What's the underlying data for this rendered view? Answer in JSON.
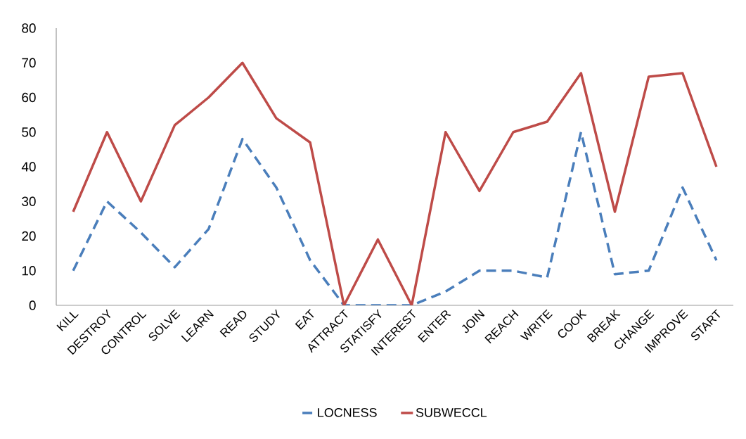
{
  "chart_data": {
    "type": "line",
    "categories": [
      "KILL",
      "DESTROY",
      "CONTROL",
      "SOLVE",
      "LEARN",
      "READ",
      "STUDY",
      "EAT",
      "ATTRACT",
      "STATISFY",
      "INTEREST",
      "ENTER",
      "JOIN",
      "REACH",
      "WRITE",
      "COOK",
      "BREAK",
      "CHANGE",
      "IMPROVE",
      "START"
    ],
    "series": [
      {
        "name": "LOCNESS",
        "color": "#4a7ebb",
        "line_style": "dashed",
        "values": [
          10,
          30,
          21,
          11,
          22,
          48,
          34,
          13,
          0,
          0,
          0,
          4,
          10,
          10,
          8,
          50,
          9,
          10,
          34,
          13
        ]
      },
      {
        "name": "SUBWECCL",
        "color": "#be4b48",
        "line_style": "solid",
        "values": [
          27,
          50,
          30,
          52,
          60,
          70,
          54,
          47,
          0,
          19,
          0,
          50,
          33,
          50,
          53,
          67,
          27,
          66,
          67,
          40
        ]
      }
    ],
    "ylim": [
      0,
      80
    ],
    "yticks": [
      0,
      10,
      20,
      30,
      40,
      50,
      60,
      70,
      80
    ],
    "grid": false,
    "legend": "bottom",
    "marker": "none"
  }
}
